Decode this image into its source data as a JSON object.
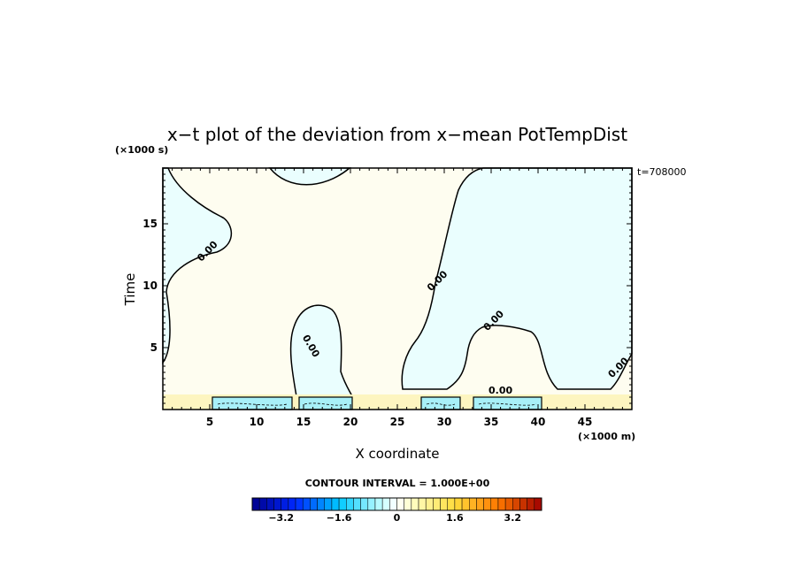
{
  "chart_data": {
    "type": "heatmap",
    "title": "x−t plot of the deviation from x−mean PotTempDist",
    "xlabel": "X coordinate",
    "ylabel": "Time",
    "x_unit": "(×1000 m)",
    "y_unit": "(×1000 s)",
    "time_stamp": "t=708000",
    "xlim": [
      0,
      50
    ],
    "ylim": [
      0,
      19.5
    ],
    "x_ticks": [
      5,
      10,
      15,
      20,
      25,
      30,
      35,
      40,
      45
    ],
    "y_ticks": [
      5,
      10,
      15
    ],
    "contour_interval_text": "CONTOUR INTERVAL = 1.000E+00",
    "contour_labels": [
      {
        "text": "0.00",
        "x": 5.0,
        "y": 12.6
      },
      {
        "text": "0.00",
        "x": 15.5,
        "y": 5.0
      },
      {
        "text": "0.00",
        "x": 29.5,
        "y": 10.2
      },
      {
        "text": "0.00",
        "x": 35.5,
        "y": 7.0
      },
      {
        "text": "0.00",
        "x": 48.8,
        "y": 3.2
      },
      {
        "text": "0.00",
        "x": 36.0,
        "y": 1.3
      }
    ],
    "colorbar": {
      "range": [
        -4.0,
        4.0
      ],
      "n_levels": 40,
      "tick_labels": [
        "−3.2",
        "−1.6",
        "0",
        "1.6",
        "3.2"
      ],
      "tick_values": [
        -3.2,
        -1.6,
        0,
        1.6,
        3.2
      ]
    },
    "colors": {
      "positive_fill": "#fefdf0",
      "negative_fill": "#eafefe",
      "warm_strip": "#fdf5c0",
      "cool_strip": "#a8f0f8"
    }
  }
}
